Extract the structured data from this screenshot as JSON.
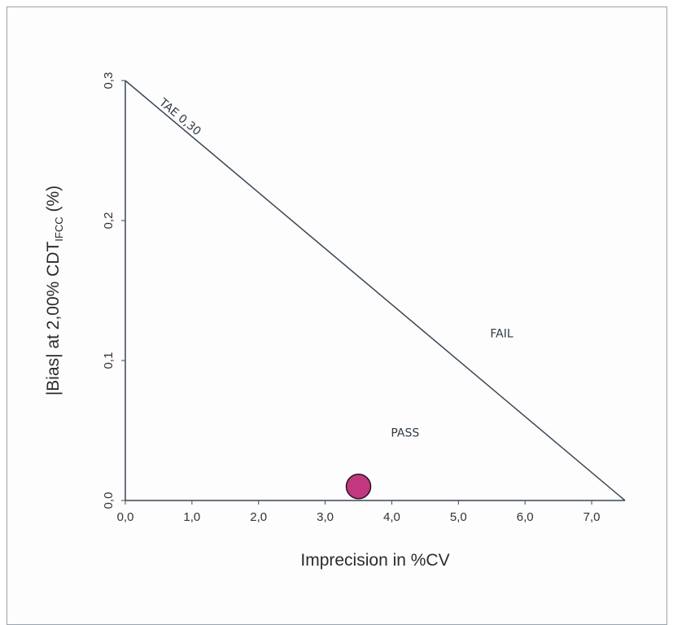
{
  "chart_data": {
    "type": "scatter",
    "title": "",
    "xlabel": "Imprecision in %CV",
    "ylabel": {
      "main": "|Bias| at 2,00% CDT",
      "subscript": "IFCC",
      "suffix": " (%)"
    },
    "xlim": [
      0,
      7.5
    ],
    "ylim": [
      0,
      0.3
    ],
    "x_ticks": [
      {
        "value": 0,
        "label": "0,0"
      },
      {
        "value": 1,
        "label": "1,0"
      },
      {
        "value": 2,
        "label": "2,0"
      },
      {
        "value": 3,
        "label": "3,0"
      },
      {
        "value": 4,
        "label": "4,0"
      },
      {
        "value": 5,
        "label": "5,0"
      },
      {
        "value": 6,
        "label": "6,0"
      },
      {
        "value": 7,
        "label": "7,0"
      }
    ],
    "y_ticks": [
      {
        "value": 0,
        "label": "0,0"
      },
      {
        "value": 0.1,
        "label": "0,1"
      },
      {
        "value": 0.2,
        "label": "0,2"
      },
      {
        "value": 0.3,
        "label": "0,3"
      }
    ],
    "grid": false,
    "limit_line": {
      "label": "TAE 0,30",
      "points": [
        [
          0,
          0.3
        ],
        [
          7.5,
          0
        ]
      ]
    },
    "regions": [
      {
        "label": "FAIL",
        "x": 5.65,
        "y": 0.119
      },
      {
        "label": "PASS",
        "x": 4.2,
        "y": 0.048
      }
    ],
    "points": [
      {
        "x": 3.5,
        "y": 0.01
      }
    ],
    "point_color": "#c2387f",
    "point_edge_color": "#2a1020",
    "line_color": "#3b4654",
    "axis_color": "#3b4654"
  }
}
